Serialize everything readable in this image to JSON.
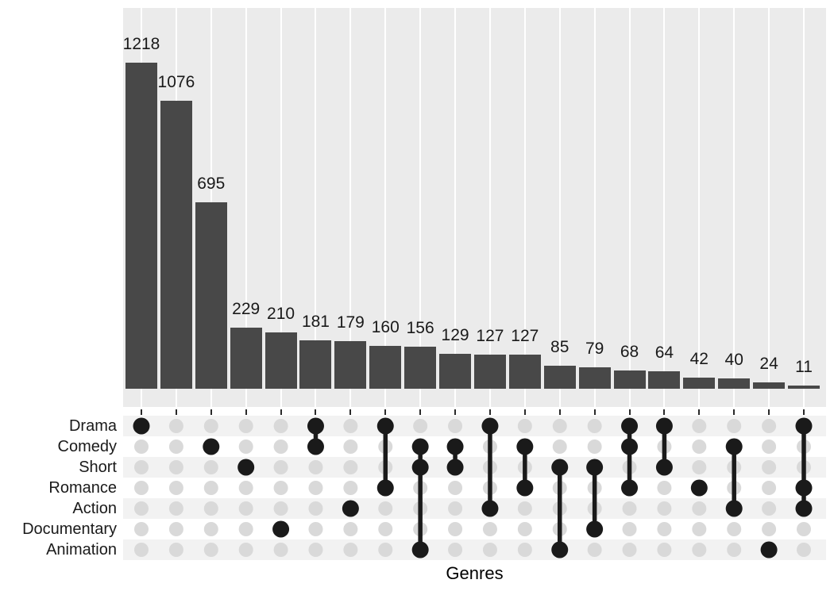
{
  "chart_data": {
    "type": "bar",
    "subtype": "upset",
    "title": "",
    "xlabel": "Genres",
    "ylabel": "",
    "legend": false,
    "grid": "vertical-white-gridlines",
    "ylim": [
      0,
      1425
    ],
    "y_axis_visible": false,
    "sets": [
      "Drama",
      "Comedy",
      "Short",
      "Romance",
      "Action",
      "Documentary",
      "Animation"
    ],
    "intersections": [
      {
        "value": 1218,
        "members": [
          "Drama"
        ]
      },
      {
        "value": 1076,
        "members": []
      },
      {
        "value": 695,
        "members": [
          "Comedy"
        ]
      },
      {
        "value": 229,
        "members": [
          "Short"
        ]
      },
      {
        "value": 210,
        "members": [
          "Documentary"
        ]
      },
      {
        "value": 181,
        "members": [
          "Drama",
          "Comedy"
        ]
      },
      {
        "value": 179,
        "members": [
          "Action"
        ]
      },
      {
        "value": 160,
        "members": [
          "Drama",
          "Romance"
        ]
      },
      {
        "value": 156,
        "members": [
          "Comedy",
          "Short",
          "Animation"
        ]
      },
      {
        "value": 129,
        "members": [
          "Comedy",
          "Short"
        ]
      },
      {
        "value": 127,
        "members": [
          "Drama",
          "Action"
        ]
      },
      {
        "value": 127,
        "members": [
          "Comedy",
          "Romance"
        ]
      },
      {
        "value": 85,
        "members": [
          "Short",
          "Animation"
        ]
      },
      {
        "value": 79,
        "members": [
          "Short",
          "Documentary"
        ]
      },
      {
        "value": 68,
        "members": [
          "Drama",
          "Comedy",
          "Romance"
        ]
      },
      {
        "value": 64,
        "members": [
          "Drama",
          "Short"
        ]
      },
      {
        "value": 42,
        "members": [
          "Romance"
        ]
      },
      {
        "value": 40,
        "members": [
          "Comedy",
          "Action"
        ]
      },
      {
        "value": 24,
        "members": [
          "Animation"
        ]
      },
      {
        "value": 11,
        "members": [
          "Drama",
          "Romance",
          "Action"
        ]
      }
    ]
  },
  "colors": {
    "bar": "#484848",
    "panel_background": "#EBEBEB",
    "gridline": "#FFFFFF",
    "matrix_stripe": "#F2F2F2",
    "dot_empty": "#D9D9D9",
    "dot_filled": "#1A1A1A",
    "connector_line": "#1A1A1A",
    "axis_tick": "#2A2A2A",
    "text": "#1A1A1A"
  }
}
